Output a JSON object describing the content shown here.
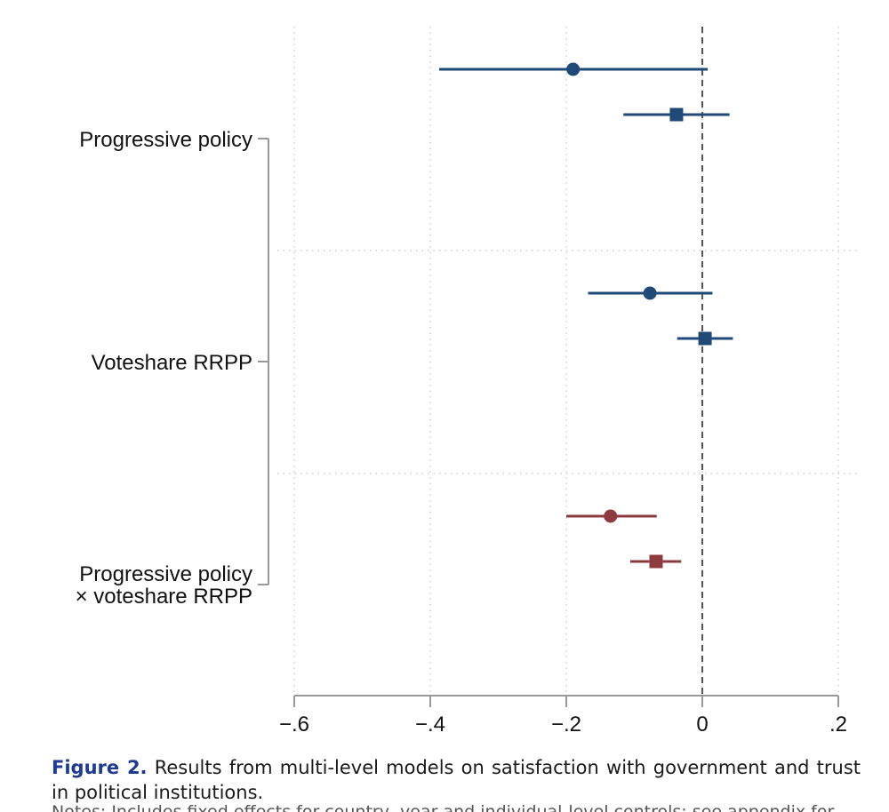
{
  "chart_data": {
    "type": "scatter",
    "subtype": "coefficient plot",
    "x_ticks": [
      -0.6,
      -0.4,
      -0.2,
      0,
      0.2
    ],
    "x_tick_labels": [
      "−.6",
      "−.4",
      "−.2",
      "0",
      ".2"
    ],
    "xlim": [
      -0.63,
      0.23
    ],
    "reference_line": 0,
    "groups": [
      {
        "label_lines": [
          "Progressive policy"
        ],
        "color": "#1f4a77",
        "estimates": [
          {
            "marker": "circle",
            "estimate": -0.19,
            "ci_low": -0.387,
            "ci_high": 0.008
          },
          {
            "marker": "square",
            "estimate": -0.038,
            "ci_low": -0.116,
            "ci_high": 0.04
          }
        ]
      },
      {
        "label_lines": [
          "Voteshare RRPP"
        ],
        "color": "#1f4a77",
        "estimates": [
          {
            "marker": "circle",
            "estimate": -0.077,
            "ci_low": -0.168,
            "ci_high": 0.015
          },
          {
            "marker": "square",
            "estimate": 0.004,
            "ci_low": -0.037,
            "ci_high": 0.045
          }
        ]
      },
      {
        "label_lines": [
          "Progressive policy",
          "× voteshare RRPP"
        ],
        "color": "#8f3a3e",
        "estimates": [
          {
            "marker": "circle",
            "estimate": -0.135,
            "ci_low": -0.2,
            "ci_high": -0.067
          },
          {
            "marker": "square",
            "estimate": -0.068,
            "ci_low": -0.106,
            "ci_high": -0.031
          }
        ]
      }
    ]
  },
  "caption": {
    "label": "Figure 2.",
    "text": "Results from multi-level models on satisfaction with government and trust in political institutions.",
    "cutoff_line": "Notes: Includes fixed effects for country, year and individual-level controls; see appendix for full results."
  }
}
